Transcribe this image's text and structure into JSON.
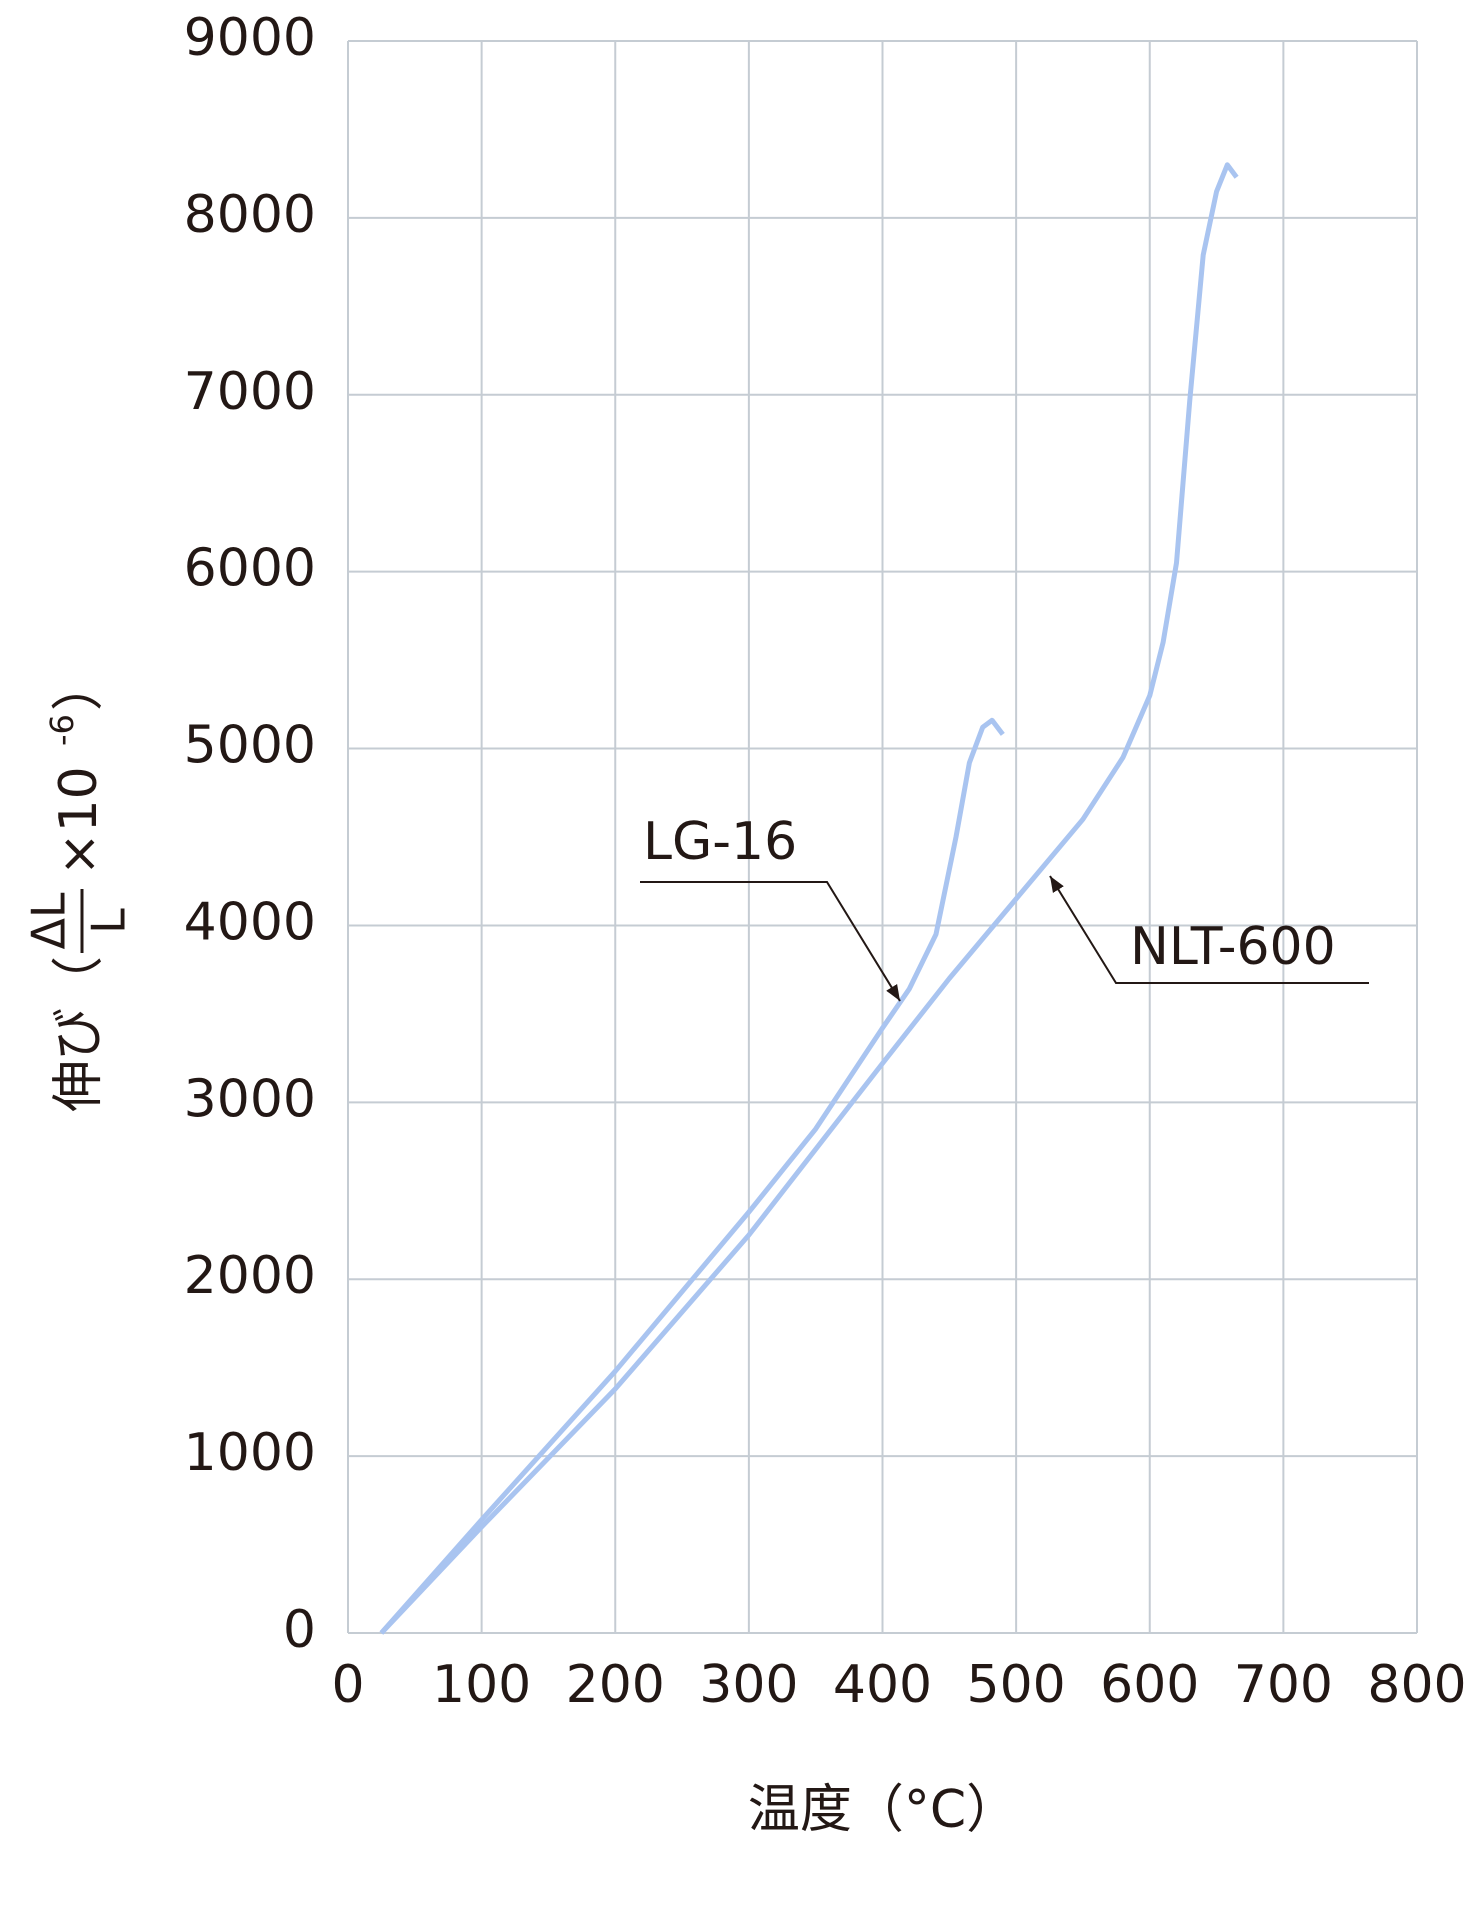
{
  "chart_data": {
    "type": "line",
    "x_label": "温度（°C）",
    "y_label": {
      "prefix": "伸び（",
      "numerator": "ΔL",
      "denominator": "L",
      "multiplier": "×10",
      "exponent": "-6",
      "suffix": "）"
    },
    "series": [
      {
        "name": "LG-16",
        "color": "#a9c4f0",
        "x": [
          25,
          100,
          200,
          300,
          350,
          400,
          420,
          440,
          455,
          465,
          475,
          482,
          490
        ],
        "values": [
          0,
          640,
          1480,
          2380,
          2850,
          3420,
          3640,
          3950,
          4500,
          4920,
          5120,
          5160,
          5080
        ]
      },
      {
        "name": "NLT-600",
        "color": "#a9c4f0",
        "x": [
          25,
          100,
          200,
          300,
          400,
          450,
          500,
          550,
          580,
          600,
          610,
          620,
          630,
          640,
          650,
          658,
          665
        ],
        "values": [
          0,
          600,
          1380,
          2250,
          3220,
          3700,
          4150,
          4600,
          4950,
          5300,
          5600,
          6050,
          6970,
          7790,
          8150,
          8300,
          8230
        ]
      }
    ],
    "xlim": [
      0,
      800
    ],
    "xticks": [
      0,
      100,
      200,
      300,
      400,
      500,
      600,
      700,
      800
    ],
    "ylim": [
      0,
      9000
    ],
    "yticks": [
      0,
      1000,
      2000,
      3000,
      4000,
      5000,
      6000,
      7000,
      8000,
      9000
    ],
    "grid": true
  }
}
